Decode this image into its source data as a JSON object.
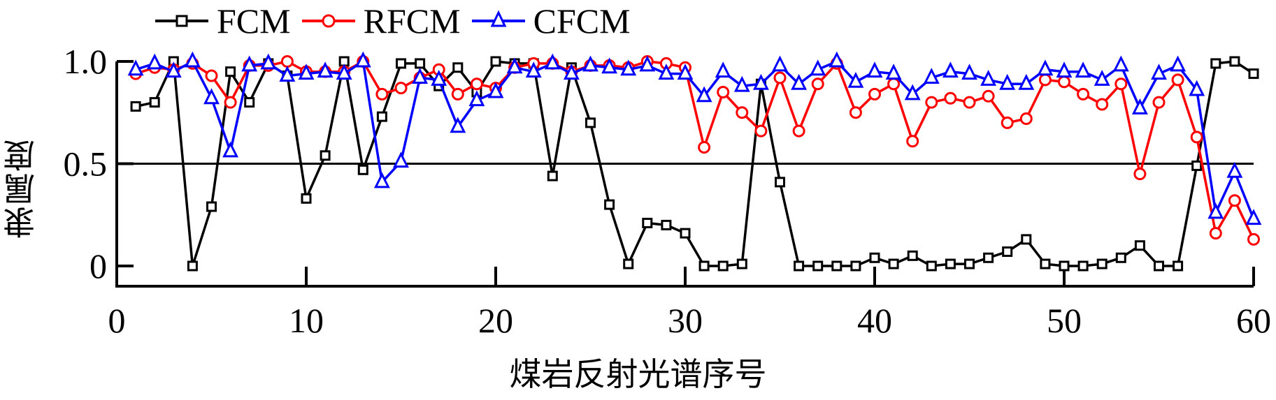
{
  "chart_data": {
    "type": "line",
    "title": "",
    "xlabel": "煤岩反射光谱序号",
    "ylabel": "隶属度",
    "xlim": [
      0,
      60
    ],
    "ylim": [
      0,
      1.0
    ],
    "xticks": [
      0,
      10,
      20,
      30,
      40,
      50,
      60
    ],
    "yticks": [
      0,
      0.5,
      1.0
    ],
    "ytick_labels": [
      "0",
      "0.5",
      "1.0"
    ],
    "reference_line": 0.5,
    "grid": false,
    "legend_position": "top",
    "x": [
      1,
      2,
      3,
      4,
      5,
      6,
      7,
      8,
      9,
      10,
      11,
      12,
      13,
      14,
      15,
      16,
      17,
      18,
      19,
      20,
      21,
      22,
      23,
      24,
      25,
      26,
      27,
      28,
      29,
      30,
      31,
      32,
      33,
      34,
      35,
      36,
      37,
      38,
      39,
      40,
      41,
      42,
      43,
      44,
      45,
      46,
      47,
      48,
      49,
      50,
      51,
      52,
      53,
      54,
      55,
      56,
      57,
      58,
      59,
      60
    ],
    "series": [
      {
        "name": "FCM",
        "color": "#000000",
        "marker": "square",
        "values": [
          0.78,
          0.8,
          1.0,
          0.0,
          0.29,
          0.95,
          0.8,
          0.99,
          0.93,
          0.33,
          0.54,
          1.0,
          0.47,
          0.73,
          0.99,
          0.99,
          0.88,
          0.97,
          0.85,
          1.0,
          0.99,
          0.99,
          0.44,
          0.97,
          0.7,
          0.3,
          0.01,
          0.21,
          0.2,
          0.16,
          0.0,
          0.0,
          0.01,
          0.89,
          0.41,
          0.0,
          0.0,
          0.0,
          0.0,
          0.04,
          0.01,
          0.05,
          0.0,
          0.01,
          0.01,
          0.04,
          0.07,
          0.13,
          0.01,
          0.0,
          0.0,
          0.01,
          0.04,
          0.1,
          0.0,
          0.0,
          0.49,
          0.99,
          1.0,
          0.94
        ]
      },
      {
        "name": "RFCM",
        "color": "#ff0000",
        "marker": "circle",
        "values": [
          0.94,
          0.97,
          0.96,
          0.99,
          0.93,
          0.8,
          0.98,
          0.98,
          1.0,
          0.95,
          0.95,
          0.95,
          1.0,
          0.84,
          0.87,
          0.92,
          0.96,
          0.84,
          0.89,
          0.87,
          0.97,
          0.99,
          0.99,
          0.95,
          0.98,
          0.98,
          0.97,
          1.0,
          0.99,
          0.97,
          0.58,
          0.85,
          0.75,
          0.66,
          0.92,
          0.66,
          0.89,
          0.99,
          0.75,
          0.84,
          0.89,
          0.61,
          0.8,
          0.82,
          0.8,
          0.83,
          0.7,
          0.72,
          0.91,
          0.9,
          0.84,
          0.79,
          0.89,
          0.45,
          0.8,
          0.91,
          0.63,
          0.16,
          0.32,
          0.13
        ]
      },
      {
        "name": "CFCM",
        "color": "#0000ff",
        "marker": "triangle",
        "values": [
          0.96,
          0.99,
          0.95,
          1.0,
          0.82,
          0.56,
          0.98,
          0.99,
          0.93,
          0.94,
          0.95,
          0.94,
          1.0,
          0.41,
          0.51,
          0.92,
          0.91,
          0.68,
          0.81,
          0.85,
          0.97,
          0.95,
          0.99,
          0.94,
          0.98,
          0.97,
          0.96,
          0.98,
          0.94,
          0.94,
          0.83,
          0.95,
          0.88,
          0.89,
          0.98,
          0.89,
          0.96,
          1.0,
          0.9,
          0.95,
          0.94,
          0.84,
          0.92,
          0.95,
          0.94,
          0.91,
          0.89,
          0.89,
          0.96,
          0.95,
          0.95,
          0.91,
          0.98,
          0.77,
          0.94,
          0.98,
          0.86,
          0.26,
          0.46,
          0.23
        ]
      }
    ]
  },
  "legend": {
    "items": [
      {
        "label": "FCM",
        "color": "#000000",
        "marker": "square"
      },
      {
        "label": "RFCM",
        "color": "#ff0000",
        "marker": "circle"
      },
      {
        "label": "CFCM",
        "color": "#0000ff",
        "marker": "triangle"
      }
    ]
  }
}
